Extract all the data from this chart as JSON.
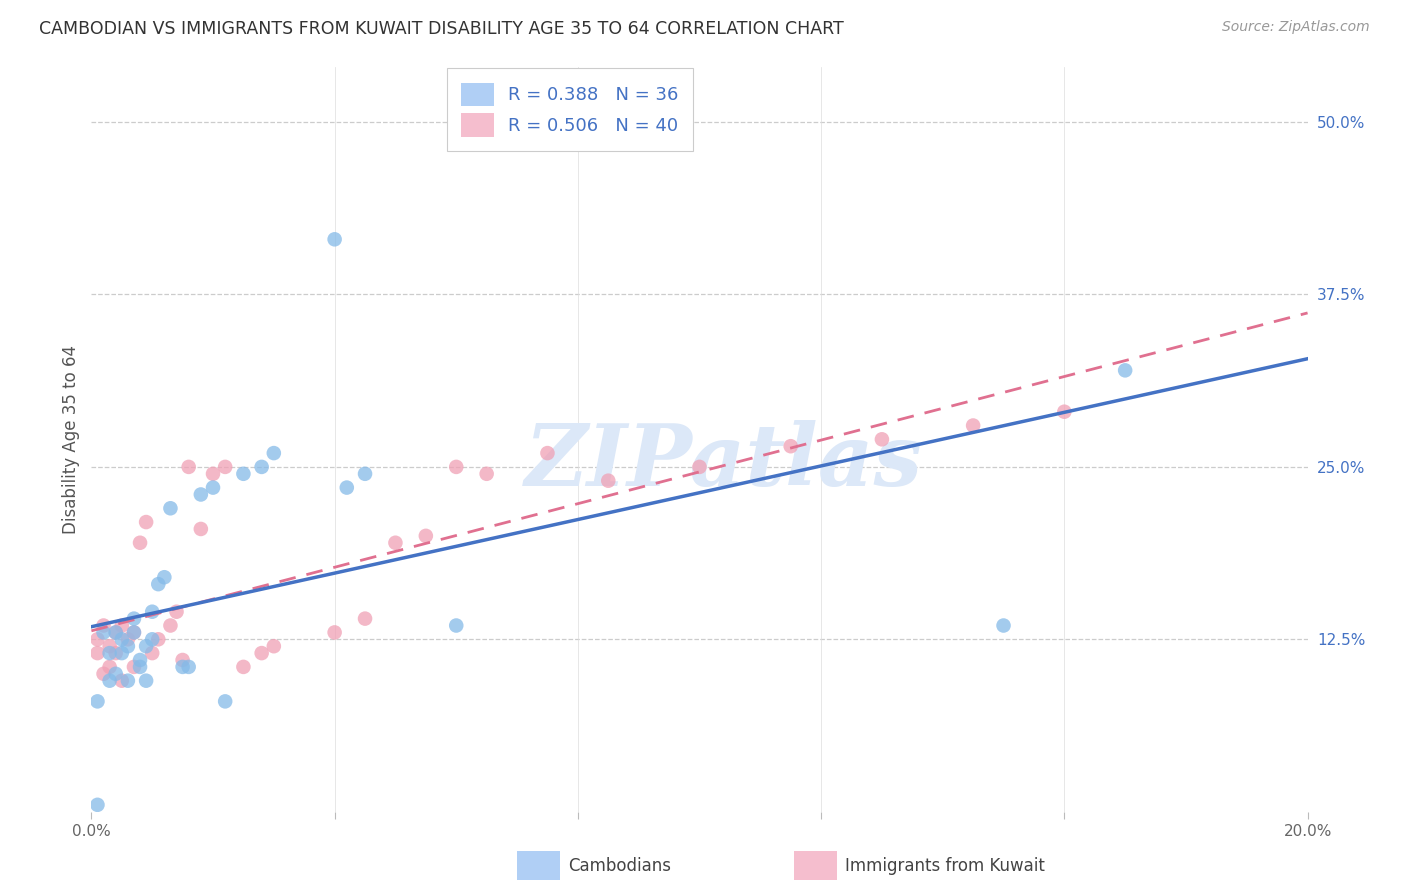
{
  "title": "CAMBODIAN VS IMMIGRANTS FROM KUWAIT DISABILITY AGE 35 TO 64 CORRELATION CHART",
  "source": "Source: ZipAtlas.com",
  "ylabel": "Disability Age 35 to 64",
  "xlim": [
    0.0,
    0.2
  ],
  "ylim": [
    0.0,
    0.54
  ],
  "color_blue": "#85bae8",
  "color_pink": "#f0a0b5",
  "color_blue_line": "#4472c4",
  "color_pink_line": "#e07090",
  "color_legend_blue": "#b0cff5",
  "color_legend_pink": "#f5bece",
  "watermark_color": "#dce8f8",
  "R_blue": 0.388,
  "N_blue": 36,
  "R_pink": 0.506,
  "N_pink": 40,
  "legend_label1": "Cambodians",
  "legend_label2": "Immigrants from Kuwait",
  "cambodians_x": [
    0.001,
    0.001,
    0.002,
    0.003,
    0.003,
    0.004,
    0.004,
    0.005,
    0.005,
    0.006,
    0.006,
    0.007,
    0.007,
    0.008,
    0.008,
    0.009,
    0.009,
    0.01,
    0.01,
    0.011,
    0.012,
    0.013,
    0.015,
    0.016,
    0.018,
    0.02,
    0.022,
    0.025,
    0.028,
    0.03,
    0.04,
    0.042,
    0.045,
    0.06,
    0.15,
    0.17
  ],
  "cambodians_y": [
    0.005,
    0.08,
    0.13,
    0.095,
    0.115,
    0.1,
    0.13,
    0.115,
    0.125,
    0.095,
    0.12,
    0.13,
    0.14,
    0.11,
    0.105,
    0.095,
    0.12,
    0.125,
    0.145,
    0.165,
    0.17,
    0.22,
    0.105,
    0.105,
    0.23,
    0.235,
    0.08,
    0.245,
    0.25,
    0.26,
    0.415,
    0.235,
    0.245,
    0.135,
    0.135,
    0.32
  ],
  "kuwait_x": [
    0.001,
    0.001,
    0.002,
    0.002,
    0.003,
    0.003,
    0.004,
    0.004,
    0.005,
    0.005,
    0.006,
    0.007,
    0.007,
    0.008,
    0.009,
    0.01,
    0.011,
    0.013,
    0.014,
    0.015,
    0.016,
    0.018,
    0.02,
    0.022,
    0.025,
    0.028,
    0.03,
    0.04,
    0.045,
    0.05,
    0.055,
    0.06,
    0.065,
    0.075,
    0.085,
    0.1,
    0.115,
    0.13,
    0.145,
    0.16
  ],
  "kuwait_y": [
    0.115,
    0.125,
    0.1,
    0.135,
    0.105,
    0.12,
    0.115,
    0.13,
    0.095,
    0.135,
    0.125,
    0.105,
    0.13,
    0.195,
    0.21,
    0.115,
    0.125,
    0.135,
    0.145,
    0.11,
    0.25,
    0.205,
    0.245,
    0.25,
    0.105,
    0.115,
    0.12,
    0.13,
    0.14,
    0.195,
    0.2,
    0.25,
    0.245,
    0.26,
    0.24,
    0.25,
    0.265,
    0.27,
    0.28,
    0.29
  ]
}
